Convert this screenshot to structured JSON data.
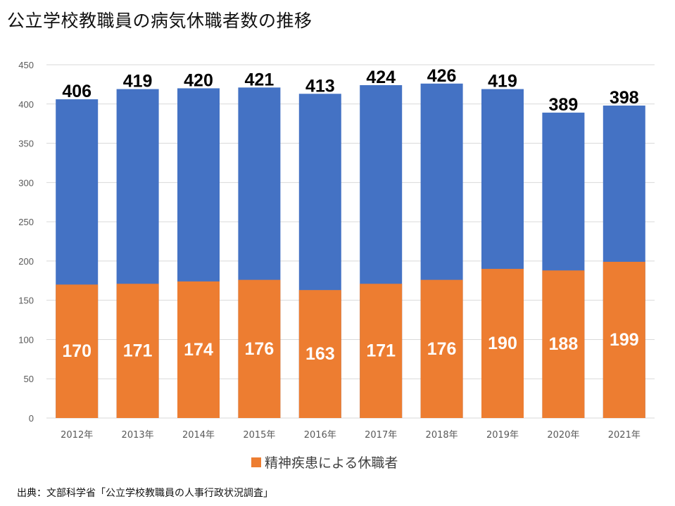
{
  "title": "公立学校教職員の病気休職者数の推移",
  "source": "出典：文部科学省「公立学校教職員の人事行政状況調査」",
  "colors": {
    "total": "#4472C4",
    "mental": "#ED7D31",
    "grid": "#D9D9D9"
  },
  "chart_data": {
    "type": "bar",
    "categories": [
      "2012年",
      "2013年",
      "2014年",
      "2015年",
      "2016年",
      "2017年",
      "2018年",
      "2019年",
      "2020年",
      "2021年"
    ],
    "series": [
      {
        "values": [
          406,
          419,
          420,
          421,
          413,
          424,
          426,
          419,
          389,
          398
        ]
      },
      {
        "name": "精神疾患による休職者",
        "values": [
          170,
          171,
          174,
          176,
          163,
          171,
          176,
          190,
          188,
          199
        ]
      }
    ],
    "ylim": [
      0,
      450
    ],
    "yticks": [
      0,
      50,
      100,
      150,
      200,
      250,
      300,
      350,
      400,
      450
    ],
    "grid": true,
    "legend_position": "bottom",
    "legend": [
      "精神疾患による休職者"
    ]
  }
}
